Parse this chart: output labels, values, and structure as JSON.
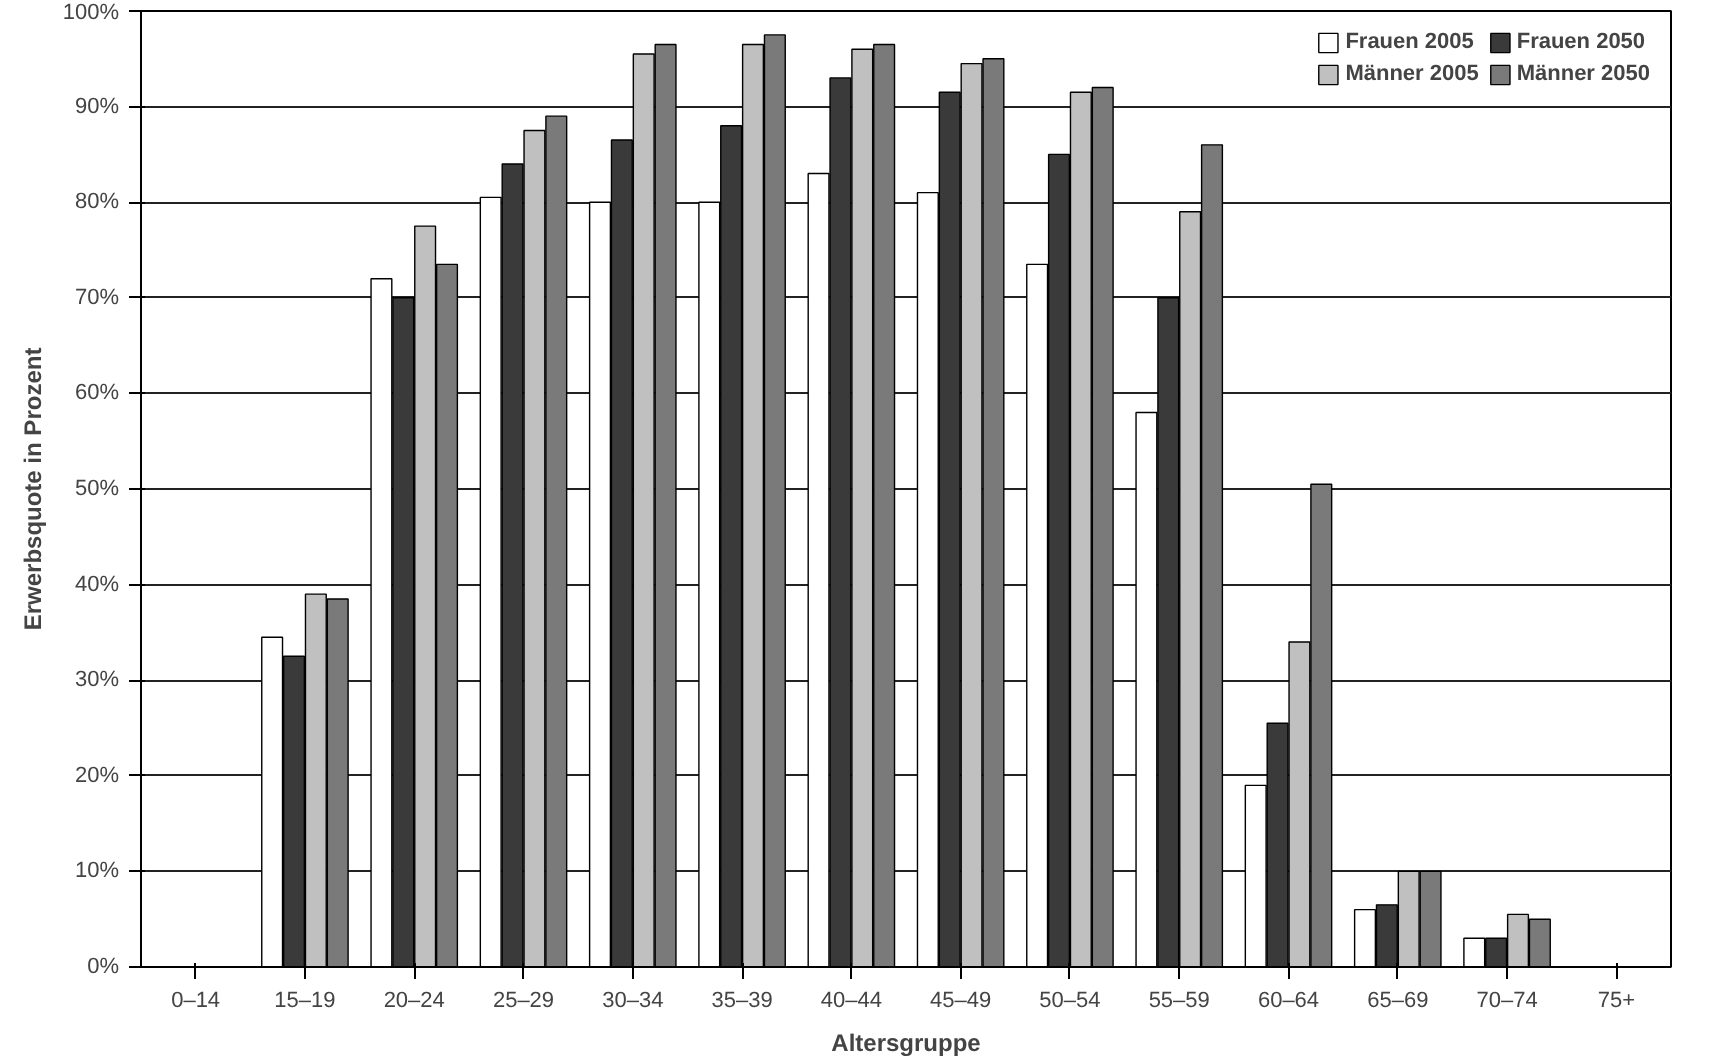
{
  "chart_data": {
    "type": "bar",
    "xlabel": "Altersgruppe",
    "ylabel": "Erwerbsquote in Prozent",
    "categories": [
      "0–14",
      "15–19",
      "20–24",
      "25–29",
      "30–34",
      "35–39",
      "40–44",
      "45–49",
      "50–54",
      "55–59",
      "60–64",
      "65–69",
      "70–74",
      "75+"
    ],
    "series": [
      {
        "name": "Frauen 2005",
        "color": "#ffffff",
        "values": [
          null,
          34.5,
          72,
          80.5,
          80,
          80,
          83,
          81,
          73.5,
          58,
          19,
          6,
          3,
          null
        ]
      },
      {
        "name": "Frauen 2050",
        "color": "#3a3a3a",
        "values": [
          null,
          32.5,
          70,
          84,
          86.5,
          88,
          93,
          91.5,
          85,
          70,
          25.5,
          6.5,
          3,
          null
        ]
      },
      {
        "name": "Männer 2005",
        "color": "#c0c0c0",
        "values": [
          null,
          39,
          77.5,
          87.5,
          95.5,
          96.5,
          96,
          94.5,
          91.5,
          79,
          34,
          10,
          5.5,
          null
        ]
      },
      {
        "name": "Männer 2050",
        "color": "#7a7a7a",
        "values": [
          null,
          38.5,
          73.5,
          89,
          96.5,
          97.5,
          96.5,
          95,
          92,
          86,
          50.5,
          10,
          5,
          null
        ]
      }
    ],
    "ylim": [
      0,
      100
    ],
    "yticks": [
      {
        "value": 0,
        "label": "0%"
      },
      {
        "value": 10,
        "label": "10%"
      },
      {
        "value": 20,
        "label": "20%"
      },
      {
        "value": 30,
        "label": "30%"
      },
      {
        "value": 40,
        "label": "40%"
      },
      {
        "value": 50,
        "label": "50%"
      },
      {
        "value": 60,
        "label": "60%"
      },
      {
        "value": 70,
        "label": "70%"
      },
      {
        "value": 80,
        "label": "80%"
      },
      {
        "value": 90,
        "label": "90%"
      },
      {
        "value": 100,
        "label": "100%"
      }
    ],
    "grid": "y",
    "legend": "top right"
  }
}
